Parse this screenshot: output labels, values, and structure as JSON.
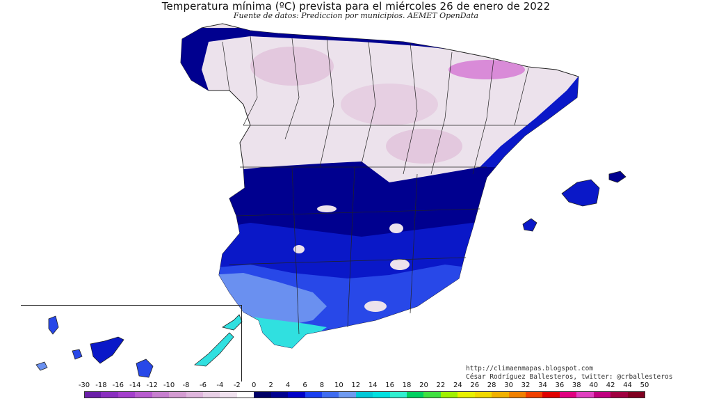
{
  "title": "Temperatura mínima (ºC) prevista para el miércoles 26 de enero de 2022",
  "subtitle": "Fuente de datos: Prediccion por municipios. AEMET OpenData",
  "credits": {
    "line1": "http://climaenmapas.blogspot.com",
    "line2": "César Rodríguez Ballesteros, twitter: @crballesteros"
  },
  "legend": {
    "unit": "ºC",
    "ticks": [
      "-30",
      "-18",
      "-16",
      "-14",
      "-12",
      "-10",
      "-8",
      "-6",
      "-4",
      "-2",
      "0",
      "2",
      "4",
      "6",
      "8",
      "10",
      "12",
      "14",
      "16",
      "18",
      "20",
      "22",
      "24",
      "26",
      "28",
      "30",
      "32",
      "34",
      "36",
      "38",
      "40",
      "42",
      "44",
      "50"
    ],
    "colors": [
      "#6a1fa8",
      "#8a2fc0",
      "#a43fcc",
      "#b85ccf",
      "#c77fcf",
      "#d49cd2",
      "#dfb6dd",
      "#e8d0e6",
      "#f0e2ef",
      "#ffffff",
      "#000066",
      "#00008f",
      "#0000c8",
      "#1a3ff0",
      "#3f6cf0",
      "#6f9af0",
      "#00c8d8",
      "#00e0e0",
      "#30f0d0",
      "#00d060",
      "#40e040",
      "#a0f000",
      "#e8f000",
      "#f0d800",
      "#f0b000",
      "#f08000",
      "#f04000",
      "#e00000",
      "#e00080",
      "#e040c0",
      "#c00080",
      "#a00040",
      "#800020"
    ]
  },
  "map": {
    "region": "Península Ibérica, Baleares y Canarias",
    "colors": {
      "cold_north": "#ece2ec",
      "very_cold": "#e3c8de",
      "freezing_peaks": "#d98bd8",
      "zero_to_two": "#00008f",
      "two_to_four": "#0a18c8",
      "four_to_six": "#2848e8",
      "six_to_eight": "#6a90f0",
      "warm_coast": "#30e0e0",
      "border": "#222222"
    }
  }
}
